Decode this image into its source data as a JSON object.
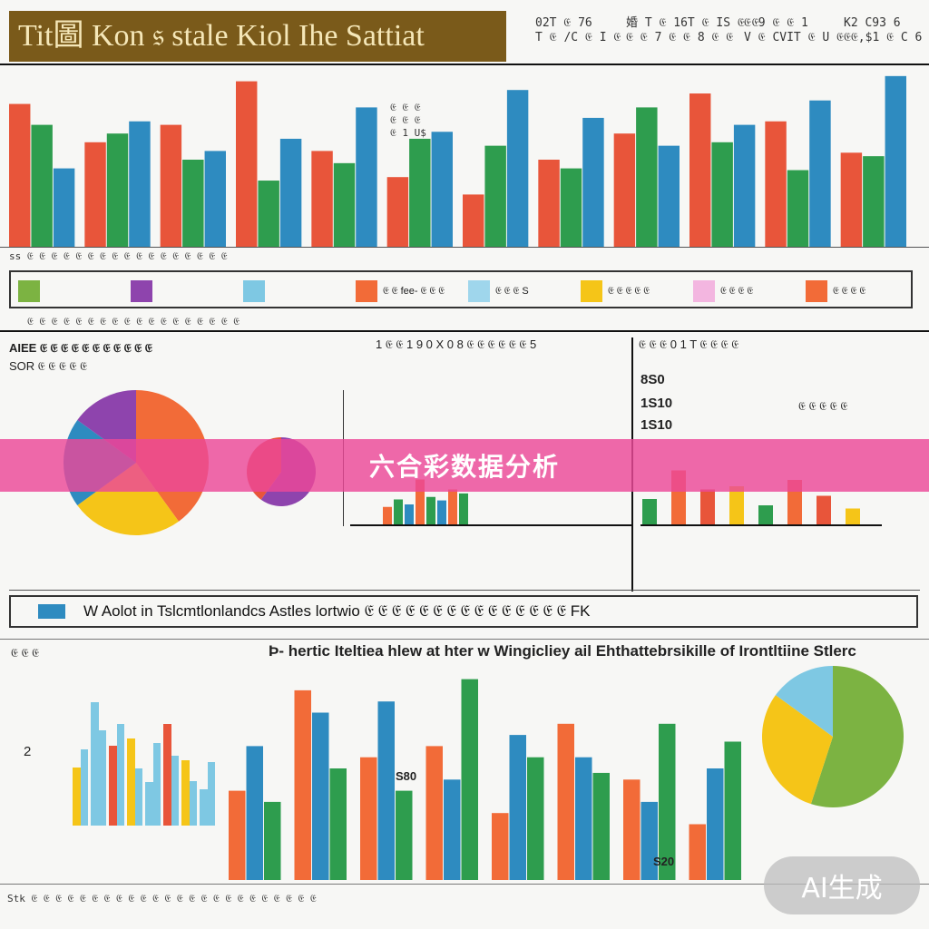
{
  "header": {
    "title": "Tit圖 Kon 𝔰 stale Kiol Ihe Sattiat",
    "meta_left": "02T 𝔈 76\nT 𝔈 /C 𝔈 I 𝔈",
    "meta_mid": "婚 T 𝔈 16T 𝔈 IS 𝔈 𝔈\n𝔈 𝔈 7 𝔈 𝔈 8 𝔈 𝔈",
    "meta_right": "𝔈 9 𝔈 𝔈 1\nV 𝔈 CVIT 𝔈 U 𝔈 𝔈",
    "meta_far": "K2 C93 6\n𝔈 ,$1 𝔈 C 6"
  },
  "top_chart": {
    "annotation": "𝔈 𝔈 𝔈\n𝔈 𝔈 𝔈\n𝔈 1 U$",
    "footer_text": "ss 𝔈 𝔈 𝔈 𝔈 𝔈 𝔈 𝔈 𝔈 𝔈 𝔈 𝔈 𝔈 𝔈 𝔈 𝔈 𝔈 𝔈"
  },
  "legend": {
    "items": [
      {
        "color": "#7cb342",
        "label": ""
      },
      {
        "color": "#8e44ad",
        "label": ""
      },
      {
        "color": "#7ec8e3",
        "label": ""
      },
      {
        "color": "#f26b38",
        "label": "𝔈 𝔈 fee- 𝔈 𝔈 𝔈"
      },
      {
        "color": "#9fd6ec",
        "label": "𝔈 𝔈 𝔈 S"
      },
      {
        "color": "#f5c518",
        "label": "𝔈 𝔈 𝔈 𝔈 𝔈"
      },
      {
        "color": "#f3b6e0",
        "label": "𝔈 𝔈 𝔈 𝔈"
      },
      {
        "color": "#f26b38",
        "label": "𝔈 𝔈 𝔈 𝔈"
      }
    ],
    "footnote": "𝔈 𝔈 𝔈 𝔈 𝔈 𝔈 𝔈 𝔈 𝔈 𝔈 𝔈 𝔈 𝔈 𝔈 𝔈 𝔈 𝔈 𝔈"
  },
  "mid_section": {
    "left_heading": "AIEE 𝔈 𝔈 𝔈 𝔈 𝔈 𝔈 𝔈 𝔈 𝔈 𝔈 𝔈",
    "left_sub": "SOR 𝔈 𝔈 𝔈 𝔈 𝔈",
    "center_heading": "1 𝔈 𝔈 1 9 0 X 0 8 𝔈 𝔈 𝔈 𝔈 𝔈 𝔈 5",
    "right_heading": "𝔈 𝔈 𝔈 0 1 T 𝔈 𝔈 𝔈 𝔈",
    "right_vals": [
      "8S0",
      "1S10",
      "1S10"
    ],
    "right_note": "𝔈 𝔈 𝔈 𝔈 𝔈"
  },
  "banner": {
    "text": "W Aolot in Tslcmtlonlandcs Astles lortwio 𝔈 𝔈 𝔈 𝔈 𝔈 𝔈 𝔈 𝔈 𝔈 𝔈 𝔈 𝔈 𝔈 𝔈 𝔈 FK"
  },
  "bottom": {
    "heading": "Þ- hertic Iteltiea hlew at hter w Wingicliey ail Ehthattebrsikille of Irontltiine Stlerc",
    "left_label_top": "𝔈 𝔈 𝔈",
    "left_num": "2",
    "value_label_a": "S80",
    "value_label_b": "S20",
    "footer": "Stk 𝔈 𝔈 𝔈 𝔈 𝔈 𝔈 𝔈 𝔈 𝔈 𝔈 𝔈 𝔈 𝔈 𝔈 𝔈 𝔈 𝔈 𝔈 𝔈 𝔈 𝔈 𝔈 𝔈 𝔈"
  },
  "overlay_title": "六合彩数据分析",
  "watermark": "AI生成",
  "chart_data": [
    {
      "type": "bar",
      "title": "",
      "series": [
        {
          "color": "#e8553a",
          "values": [
            82,
            60,
            70,
            95,
            55,
            40,
            30,
            50,
            65,
            88,
            72,
            54
          ]
        },
        {
          "color": "#2e9d4e",
          "values": [
            70,
            65,
            50,
            38,
            48,
            62,
            58,
            45,
            80,
            60,
            44,
            52
          ]
        },
        {
          "color": "#2e8bc0",
          "values": [
            45,
            72,
            55,
            62,
            80,
            66,
            90,
            74,
            58,
            70,
            84,
            98
          ]
        }
      ],
      "ylim": [
        0,
        100
      ]
    },
    {
      "type": "pie",
      "slices": [
        {
          "color": "#f26b38",
          "value": 40
        },
        {
          "color": "#f5c518",
          "value": 25
        },
        {
          "color": "#2e8bc0",
          "value": 20
        },
        {
          "color": "#8e44ad",
          "value": 15
        }
      ]
    },
    {
      "type": "bar",
      "series": [
        {
          "color": "#f26b38",
          "values": [
            40,
            85,
            55,
            60,
            30,
            70,
            45,
            25
          ]
        },
        {
          "color": "#2e8bc0",
          "values": [
            60,
            75,
            80,
            45,
            65,
            55,
            35,
            50
          ]
        },
        {
          "color": "#2e9d4e",
          "values": [
            35,
            50,
            40,
            90,
            55,
            48,
            70,
            62
          ]
        }
      ],
      "ylim": [
        0,
        100
      ]
    },
    {
      "type": "pie",
      "slices": [
        {
          "color": "#7cb342",
          "value": 55
        },
        {
          "color": "#f5c518",
          "value": 30
        },
        {
          "color": "#7ec8e3",
          "value": 15
        }
      ]
    }
  ]
}
